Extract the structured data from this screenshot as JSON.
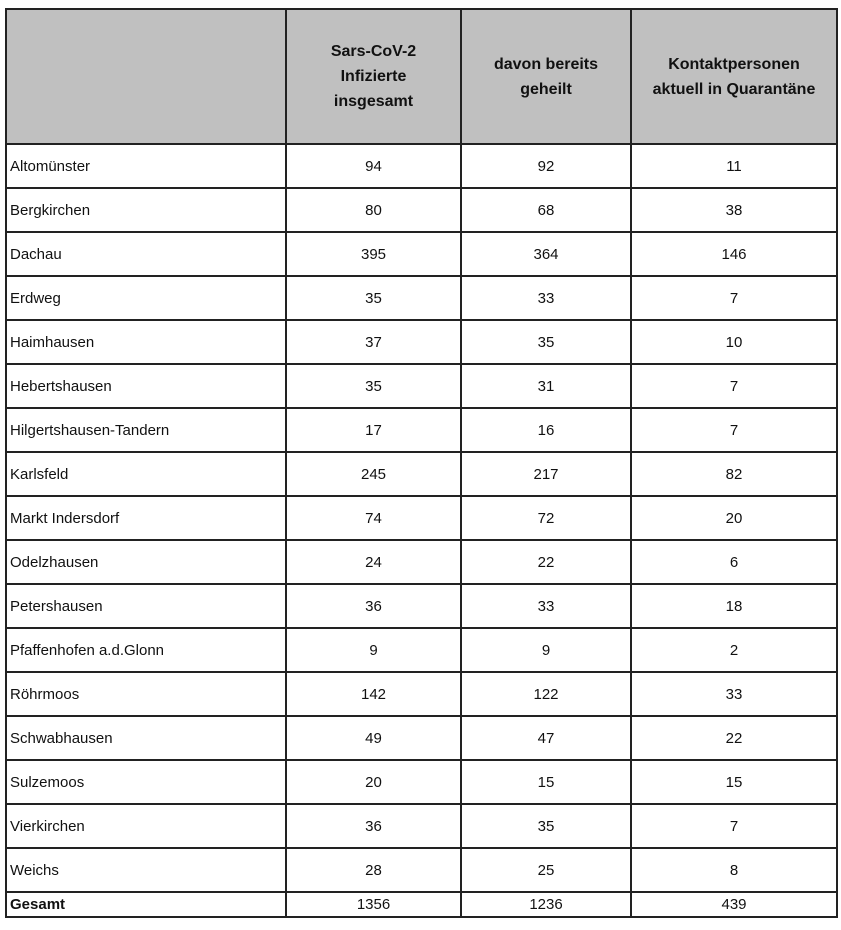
{
  "header": {
    "col0": "",
    "col1": [
      "Sars-CoV-2",
      "Infizierte",
      "insgesamt"
    ],
    "col2": [
      "davon bereits",
      "geheilt"
    ],
    "col3": [
      "Kontaktpersonen",
      "aktuell in Quarantäne"
    ]
  },
  "rows": [
    [
      "Altomünster",
      "94",
      "92",
      "11"
    ],
    [
      "Bergkirchen",
      "80",
      "68",
      "38"
    ],
    [
      "Dachau",
      "395",
      "364",
      "146"
    ],
    [
      "Erdweg",
      "35",
      "33",
      "7"
    ],
    [
      "Haimhausen",
      "37",
      "35",
      "10"
    ],
    [
      "Hebertshausen",
      "35",
      "31",
      "7"
    ],
    [
      "Hilgertshausen-Tandern",
      "17",
      "16",
      "7"
    ],
    [
      "Karlsfeld",
      "245",
      "217",
      "82"
    ],
    [
      "Markt Indersdorf",
      "74",
      "72",
      "20"
    ],
    [
      "Odelzhausen",
      "24",
      "22",
      "6"
    ],
    [
      "Petershausen",
      "36",
      "33",
      "18"
    ],
    [
      "Pfaffenhofen a.d.Glonn",
      "9",
      "9",
      "2"
    ],
    [
      "Röhrmoos",
      "142",
      "122",
      "33"
    ],
    [
      "Schwabhausen",
      "49",
      "47",
      "22"
    ],
    [
      "Sulzemoos",
      "20",
      "15",
      "15"
    ],
    [
      "Vierkirchen",
      "36",
      "35",
      "7"
    ],
    [
      "Weichs",
      "28",
      "25",
      "8"
    ]
  ],
  "total": [
    "Gesamt",
    "1356",
    "1236",
    "439"
  ],
  "colors": {
    "header_bg": "#c0c0c0",
    "border": "#222222"
  }
}
